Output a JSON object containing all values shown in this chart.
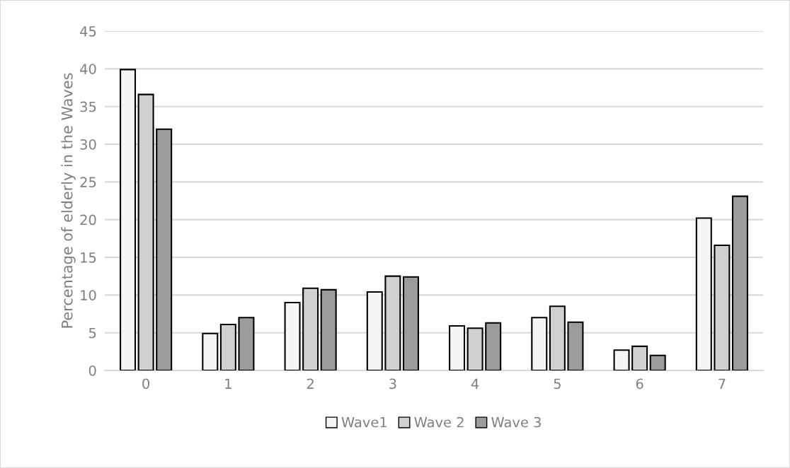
{
  "chart_data": {
    "type": "bar",
    "ylabel": "Percentage of elderly in the Waves",
    "categories": [
      "0",
      "1",
      "2",
      "3",
      "4",
      "5",
      "6",
      "7"
    ],
    "series": [
      {
        "name": "Wave1",
        "color": "#f5f5f5",
        "values": [
          39.9,
          4.9,
          9.0,
          10.4,
          5.9,
          7.0,
          2.7,
          20.2
        ]
      },
      {
        "name": "Wave 2",
        "color": "#d0d0d0",
        "values": [
          36.6,
          6.1,
          10.9,
          12.5,
          5.6,
          8.5,
          3.2,
          16.6
        ]
      },
      {
        "name": "Wave 3",
        "color": "#9c9c9c",
        "values": [
          32.0,
          7.0,
          10.7,
          12.4,
          6.3,
          6.4,
          2.0,
          23.1
        ]
      }
    ],
    "ylim": [
      0,
      45
    ],
    "yticks": [
      0,
      5,
      10,
      15,
      20,
      25,
      30,
      35,
      40,
      45
    ],
    "grid": "y",
    "legend": "bottom"
  }
}
